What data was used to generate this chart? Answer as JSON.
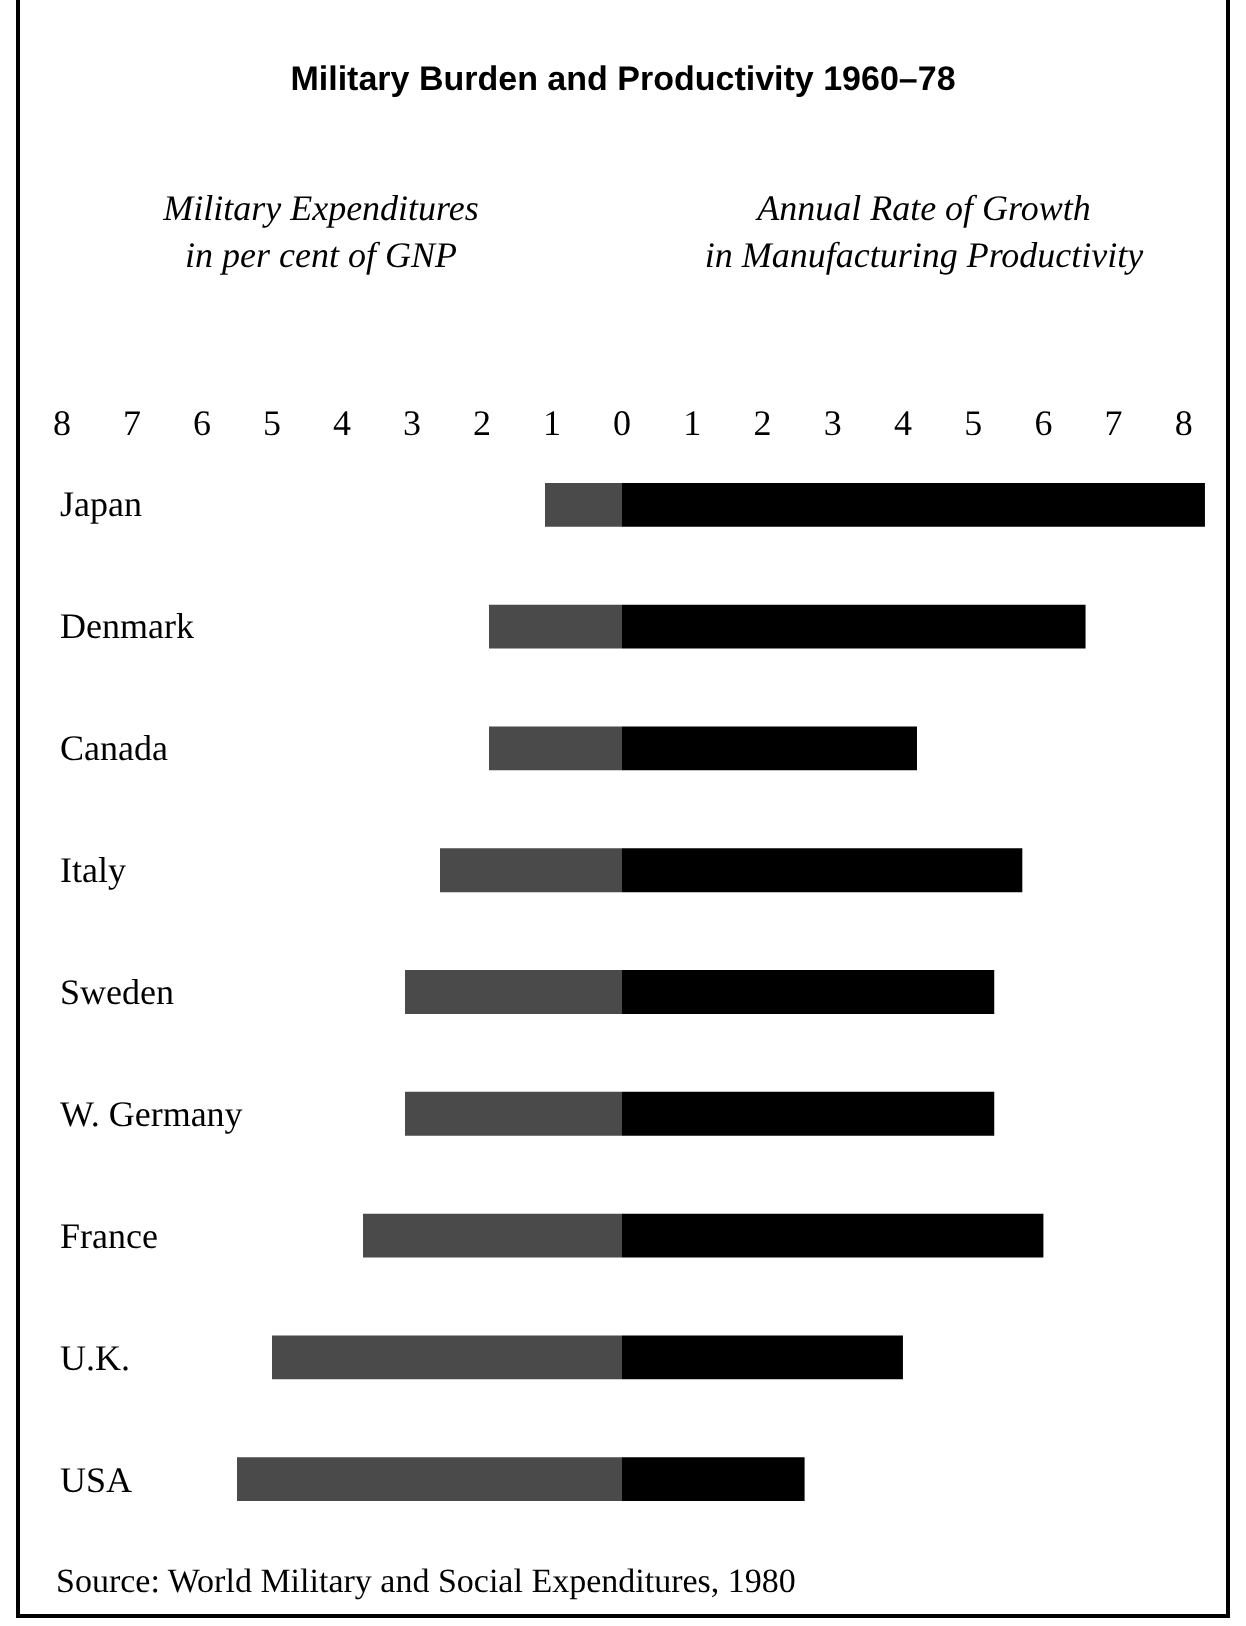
{
  "chart_data": [
    {
      "type": "bar",
      "orientation": "horizontal",
      "title": "Military Burden and Productivity 1960–78",
      "xlabel": "Military Expenditures\nin per cent of GNP",
      "categories": [
        "Japan",
        "Denmark",
        "Canada",
        "Italy",
        "Sweden",
        "W. Germany",
        "France",
        "U.K.",
        "USA"
      ],
      "values": [
        1.1,
        1.9,
        1.9,
        2.6,
        3.1,
        3.1,
        3.7,
        5.0,
        5.5
      ],
      "color": "#4a4a4a",
      "xlim": [
        8.6,
        0
      ],
      "xticks": [
        8,
        7,
        6,
        5,
        4,
        3,
        2,
        1,
        0
      ],
      "annotations": [
        "Source: World Military and Social Expenditures, 1980"
      ]
    },
    {
      "type": "bar",
      "orientation": "horizontal",
      "xlabel": "Annual Rate of Growth\nin Manufacturing Productivity",
      "categories": [
        null,
        null,
        null,
        null,
        null,
        null,
        null,
        null,
        null
      ],
      "values": [
        8.3,
        6.6,
        4.2,
        5.7,
        5.3,
        5.3,
        6.0,
        4.0,
        2.6
      ],
      "color": "#000000",
      "xlim": [
        0,
        8.6
      ],
      "xticks": [
        1,
        2,
        3,
        4,
        5,
        6,
        7,
        8
      ],
      "tick_labels": "x"
    }
  ]
}
